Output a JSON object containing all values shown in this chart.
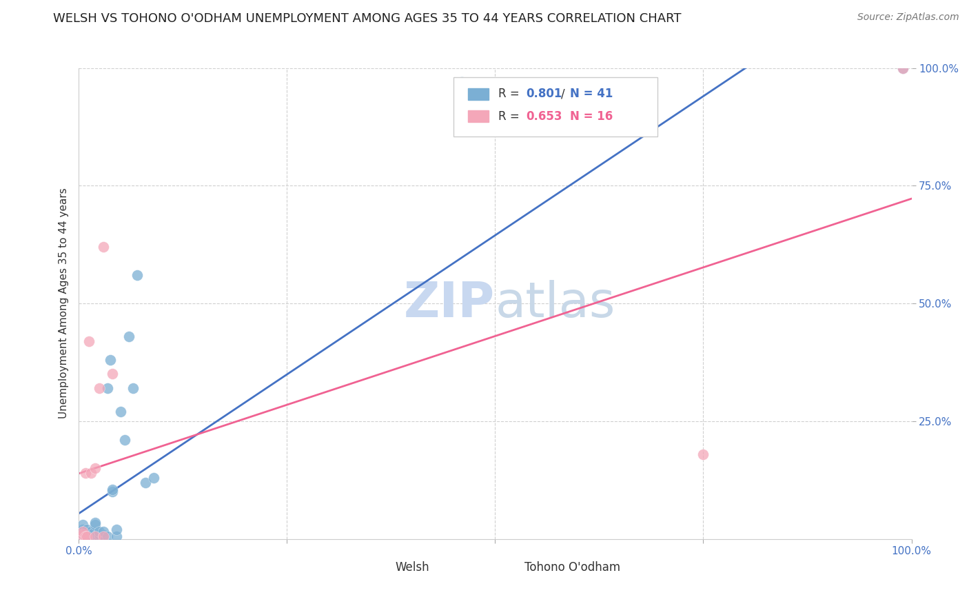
{
  "title": "WELSH VS TOHONO O'ODHAM UNEMPLOYMENT AMONG AGES 35 TO 44 YEARS CORRELATION CHART",
  "source": "Source: ZipAtlas.com",
  "ylabel": "Unemployment Among Ages 35 to 44 years",
  "xlim": [
    0,
    1.0
  ],
  "ylim": [
    0,
    1.0
  ],
  "ytick_positions": [
    0.25,
    0.5,
    0.75,
    1.0
  ],
  "yticklabels": [
    "25.0%",
    "50.0%",
    "75.0%",
    "100.0%"
  ],
  "welsh_color": "#7bafd4",
  "tohono_color": "#f4a7b9",
  "welsh_R": 0.801,
  "welsh_N": 41,
  "tohono_R": 0.653,
  "tohono_N": 16,
  "welsh_scatter": [
    [
      0.005,
      0.005
    ],
    [
      0.005,
      0.01
    ],
    [
      0.005,
      0.02
    ],
    [
      0.005,
      0.03
    ],
    [
      0.008,
      0.005
    ],
    [
      0.008,
      0.01
    ],
    [
      0.01,
      0.005
    ],
    [
      0.01,
      0.015
    ],
    [
      0.01,
      0.02
    ],
    [
      0.012,
      0.005
    ],
    [
      0.012,
      0.01
    ],
    [
      0.015,
      0.01
    ],
    [
      0.015,
      0.015
    ],
    [
      0.018,
      0.005
    ],
    [
      0.018,
      0.008
    ],
    [
      0.018,
      0.012
    ],
    [
      0.02,
      0.03
    ],
    [
      0.02,
      0.035
    ],
    [
      0.022,
      0.005
    ],
    [
      0.022,
      0.008
    ],
    [
      0.025,
      0.005
    ],
    [
      0.025,
      0.01
    ],
    [
      0.025,
      0.015
    ],
    [
      0.03,
      0.008
    ],
    [
      0.03,
      0.015
    ],
    [
      0.035,
      0.005
    ],
    [
      0.035,
      0.32
    ],
    [
      0.038,
      0.38
    ],
    [
      0.04,
      0.1
    ],
    [
      0.04,
      0.105
    ],
    [
      0.045,
      0.005
    ],
    [
      0.045,
      0.02
    ],
    [
      0.05,
      0.27
    ],
    [
      0.055,
      0.21
    ],
    [
      0.06,
      0.43
    ],
    [
      0.065,
      0.32
    ],
    [
      0.07,
      0.56
    ],
    [
      0.08,
      0.12
    ],
    [
      0.09,
      0.13
    ],
    [
      0.46,
      0.97
    ],
    [
      0.99,
      1.0
    ]
  ],
  "tohono_scatter": [
    [
      0.005,
      0.005
    ],
    [
      0.005,
      0.01
    ],
    [
      0.005,
      0.015
    ],
    [
      0.008,
      0.005
    ],
    [
      0.008,
      0.14
    ],
    [
      0.01,
      0.005
    ],
    [
      0.012,
      0.42
    ],
    [
      0.015,
      0.14
    ],
    [
      0.02,
      0.005
    ],
    [
      0.02,
      0.15
    ],
    [
      0.025,
      0.32
    ],
    [
      0.03,
      0.005
    ],
    [
      0.03,
      0.62
    ],
    [
      0.04,
      0.35
    ],
    [
      0.75,
      0.18
    ],
    [
      0.99,
      1.0
    ]
  ],
  "welsh_line_color": "#4472c4",
  "tohono_line_color": "#f06292",
  "background_color": "#ffffff",
  "grid_color": "#d0d0d0",
  "title_fontsize": 13,
  "axis_label_fontsize": 11,
  "tick_fontsize": 11,
  "legend_fontsize": 13,
  "source_fontsize": 10,
  "watermark_zip_color": "#c8d8f0",
  "watermark_atlas_color": "#c8d8e8",
  "watermark_fontsize": 52
}
